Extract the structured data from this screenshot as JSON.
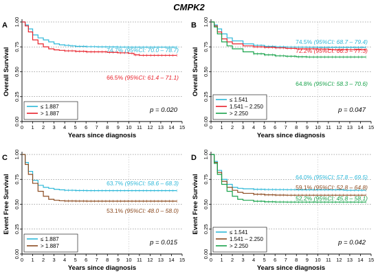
{
  "figure_title": "CMPK2",
  "colors": {
    "cyan": "#2bb7d8",
    "red": "#e8202a",
    "green": "#17a24a",
    "brown": "#8b4a1f",
    "grid": "#555555"
  },
  "chart_data": [
    {
      "id": "A",
      "type": "line",
      "panel_label": "A",
      "xlabel": "Years since diagnosis",
      "ylabel": "Overall Survival",
      "xlim": [
        0,
        15
      ],
      "ylim": [
        0,
        1
      ],
      "xticks": [
        "0",
        "1",
        "2",
        "3",
        "4",
        "5",
        "6",
        "7",
        "8",
        "9",
        "10",
        "11",
        "12",
        "13",
        "14",
        "15"
      ],
      "yticks": [
        "0.00",
        "0.25",
        "0.50",
        "0.75",
        "1.00"
      ],
      "grid": "dotted horizontal at 0.25, 0.50, 0.75, 1.00; dotted vertical at 10",
      "p_value": "p = 0.020",
      "legend_position": "bottom-left",
      "series": [
        {
          "name": "≤ 1.887",
          "color": "cyan",
          "x": [
            0,
            0.3,
            0.6,
            1,
            1.5,
            2,
            2.5,
            3,
            3.5,
            4,
            4.5,
            5,
            6,
            7,
            8,
            9,
            10,
            11,
            12,
            13,
            14,
            14.5
          ],
          "y": [
            1,
            0.97,
            0.93,
            0.87,
            0.84,
            0.82,
            0.8,
            0.78,
            0.77,
            0.765,
            0.76,
            0.755,
            0.752,
            0.75,
            0.749,
            0.748,
            0.747,
            0.747,
            0.747,
            0.747,
            0.747,
            0.747
          ]
        },
        {
          "name": "> 1.887",
          "color": "red",
          "x": [
            0,
            0.3,
            0.6,
            1,
            1.5,
            2,
            2.5,
            3,
            3.5,
            4,
            5,
            6,
            7,
            8,
            9,
            10,
            10.5,
            11,
            12,
            13,
            14,
            14.5
          ],
          "y": [
            1,
            0.96,
            0.9,
            0.82,
            0.78,
            0.75,
            0.73,
            0.72,
            0.715,
            0.71,
            0.705,
            0.7,
            0.7,
            0.695,
            0.69,
            0.685,
            0.67,
            0.665,
            0.665,
            0.665,
            0.665,
            0.665
          ]
        }
      ],
      "annotations": [
        {
          "value": "74.7%",
          "ci": "(95%CI: 70.0 – 78.7)",
          "color": "cyan"
        },
        {
          "value": "66.5%",
          "ci": "(95%CI: 61.4 – 71.1)",
          "color": "red"
        }
      ]
    },
    {
      "id": "B",
      "type": "line",
      "panel_label": "B",
      "xlabel": "Years since diagnosis",
      "ylabel": "Overall Survival",
      "xlim": [
        0,
        15
      ],
      "ylim": [
        0,
        1
      ],
      "xticks": [
        "0",
        "1",
        "2",
        "3",
        "4",
        "5",
        "6",
        "7",
        "8",
        "9",
        "10",
        "11",
        "12",
        "13",
        "14",
        "15"
      ],
      "yticks": [
        "0.00",
        "0.25",
        "0.50",
        "0.75",
        "1.00"
      ],
      "grid": "dotted horizontal at 0.25, 0.50, 0.75, 1.00; dotted vertical at 10",
      "p_value": "p = 0.047",
      "legend_position": "bottom-left",
      "series": [
        {
          "name": "≤ 1.541",
          "color": "cyan",
          "x": [
            0,
            0.3,
            0.6,
            1,
            1.5,
            2,
            3,
            4,
            5,
            6,
            7,
            8,
            9,
            10,
            11,
            12,
            13,
            14,
            14.5
          ],
          "y": [
            1,
            0.97,
            0.93,
            0.88,
            0.84,
            0.81,
            0.78,
            0.765,
            0.755,
            0.75,
            0.748,
            0.747,
            0.746,
            0.745,
            0.745,
            0.745,
            0.745,
            0.745,
            0.745
          ]
        },
        {
          "name": "1.541 – 2.250",
          "color": "red",
          "x": [
            0,
            0.3,
            0.6,
            1,
            1.5,
            2,
            3,
            4,
            5,
            6,
            7,
            8,
            9,
            10,
            11,
            12,
            13,
            14,
            14.5
          ],
          "y": [
            1,
            0.96,
            0.9,
            0.83,
            0.8,
            0.78,
            0.76,
            0.75,
            0.745,
            0.74,
            0.735,
            0.73,
            0.73,
            0.728,
            0.722,
            0.722,
            0.722,
            0.722,
            0.722
          ]
        },
        {
          "name": "> 2.250",
          "color": "green",
          "x": [
            0,
            0.3,
            0.6,
            1,
            1.5,
            2,
            3,
            4,
            5,
            6,
            7,
            8,
            9,
            10,
            11,
            12,
            13,
            14,
            14.5
          ],
          "y": [
            1,
            0.95,
            0.88,
            0.8,
            0.76,
            0.73,
            0.7,
            0.68,
            0.67,
            0.66,
            0.655,
            0.65,
            0.648,
            0.648,
            0.648,
            0.648,
            0.648,
            0.648,
            0.648
          ]
        }
      ],
      "annotations": [
        {
          "value": "74.5%",
          "ci": "(95%CI: 68.7 – 79.4)",
          "color": "cyan"
        },
        {
          "value": "72.2%",
          "ci": "(95%CI: 66.3 – 77.3)",
          "color": "red"
        },
        {
          "value": "64.8%",
          "ci": "(95%CI: 58.3 – 70.6)",
          "color": "green"
        }
      ]
    },
    {
      "id": "C",
      "type": "line",
      "panel_label": "C",
      "xlabel": "Years since diagnosis",
      "ylabel": "Event Free Survival",
      "xlim": [
        0,
        15
      ],
      "ylim": [
        0,
        1
      ],
      "xticks": [
        "0",
        "1",
        "2",
        "3",
        "4",
        "5",
        "6",
        "7",
        "8",
        "9",
        "10",
        "11",
        "12",
        "13",
        "14",
        "15"
      ],
      "yticks": [
        "0.00",
        "0.25",
        "0.50",
        "0.75",
        "1.00"
      ],
      "grid": "dotted horizontal at 0.25, 0.50, 0.75, 1.00; dotted vertical at 10",
      "p_value": "p = 0.015",
      "legend_position": "bottom-left",
      "series": [
        {
          "name": "≤ 1.887",
          "color": "cyan",
          "x": [
            0,
            0.3,
            0.6,
            1,
            1.5,
            2,
            2.5,
            3,
            3.5,
            4,
            5,
            6,
            7,
            8,
            9,
            10,
            11,
            12,
            13,
            14,
            14.5
          ],
          "y": [
            1,
            0.92,
            0.83,
            0.74,
            0.69,
            0.67,
            0.66,
            0.65,
            0.645,
            0.64,
            0.638,
            0.637,
            0.637,
            0.637,
            0.637,
            0.637,
            0.637,
            0.637,
            0.637,
            0.637,
            0.637
          ]
        },
        {
          "name": "> 1.887",
          "color": "brown",
          "x": [
            0,
            0.3,
            0.6,
            1,
            1.5,
            2,
            2.5,
            3,
            3.5,
            4,
            5,
            6,
            7,
            8,
            9,
            10,
            11,
            12,
            13,
            14,
            14.5
          ],
          "y": [
            1,
            0.9,
            0.8,
            0.71,
            0.63,
            0.58,
            0.55,
            0.54,
            0.535,
            0.533,
            0.532,
            0.531,
            0.531,
            0.531,
            0.531,
            0.531,
            0.531,
            0.531,
            0.531,
            0.531,
            0.531
          ]
        }
      ],
      "annotations": [
        {
          "value": "63.7%",
          "ci": "(95%CI: 58.6 – 68.3)",
          "color": "cyan"
        },
        {
          "value": "53.1%",
          "ci": "(95%CI: 48.0 – 58.0)",
          "color": "brown"
        }
      ]
    },
    {
      "id": "D",
      "type": "line",
      "panel_label": "D",
      "xlabel": "Years since diagnosis",
      "ylabel": "Event Free Survival",
      "xlim": [
        0,
        15
      ],
      "ylim": [
        0,
        1
      ],
      "xticks": [
        "0",
        "1",
        "2",
        "3",
        "4",
        "5",
        "6",
        "7",
        "8",
        "9",
        "10",
        "11",
        "12",
        "13",
        "14",
        "15"
      ],
      "yticks": [
        "0.00",
        "0.25",
        "0.50",
        "0.75",
        "1.00"
      ],
      "grid": "dotted horizontal at 0.25, 0.50, 0.75, 1.00; dotted vertical at 10",
      "p_value": "p = 0.042",
      "legend_position": "bottom-left",
      "series": [
        {
          "name": "≤ 1.541",
          "color": "cyan",
          "x": [
            0,
            0.3,
            0.6,
            1,
            1.5,
            2,
            2.5,
            3,
            4,
            5,
            6,
            7,
            8,
            9,
            10,
            11,
            12,
            12.5,
            13,
            14,
            14.5
          ],
          "y": [
            1,
            0.93,
            0.84,
            0.75,
            0.7,
            0.67,
            0.66,
            0.655,
            0.65,
            0.648,
            0.647,
            0.646,
            0.645,
            0.645,
            0.645,
            0.645,
            0.645,
            0.64,
            0.64,
            0.64,
            0.64
          ]
        },
        {
          "name": "1.541 – 2.250",
          "color": "brown",
          "x": [
            0,
            0.3,
            0.6,
            1,
            1.5,
            2,
            2.5,
            3,
            4,
            5,
            6,
            7,
            8,
            9,
            10,
            11,
            12,
            13,
            14,
            14.5
          ],
          "y": [
            1,
            0.92,
            0.82,
            0.73,
            0.67,
            0.64,
            0.62,
            0.61,
            0.6,
            0.595,
            0.592,
            0.591,
            0.591,
            0.591,
            0.591,
            0.591,
            0.591,
            0.591,
            0.591,
            0.591
          ]
        },
        {
          "name": "> 2.250",
          "color": "green",
          "x": [
            0,
            0.3,
            0.6,
            1,
            1.5,
            2,
            2.5,
            3,
            4,
            5,
            6,
            7,
            8,
            9,
            10,
            11,
            12,
            13,
            14,
            14.5
          ],
          "y": [
            1,
            0.91,
            0.8,
            0.7,
            0.63,
            0.58,
            0.55,
            0.54,
            0.53,
            0.525,
            0.523,
            0.522,
            0.522,
            0.522,
            0.522,
            0.522,
            0.522,
            0.522,
            0.522,
            0.522
          ]
        }
      ],
      "annotations": [
        {
          "value": "64.0%",
          "ci": "(95%CI: 57.8 – 69.5)",
          "color": "cyan"
        },
        {
          "value": "59.1%",
          "ci": "(95%CI: 52.8 – 64.8)",
          "color": "brown"
        },
        {
          "value": "52.2%",
          "ci": "(95%CI: 45.8 – 58.1)",
          "color": "green"
        }
      ]
    }
  ]
}
